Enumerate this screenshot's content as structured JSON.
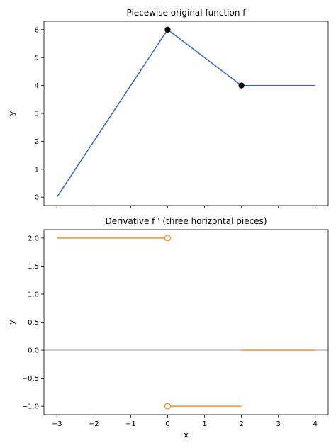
{
  "chart_data": [
    {
      "type": "line",
      "title": "Piecewise original function  f",
      "xlabel": "",
      "ylabel": "y",
      "xlim": [
        -3.35,
        4.35
      ],
      "ylim": [
        -0.3,
        6.3
      ],
      "xticks": [
        -3,
        -2,
        -1,
        0,
        1,
        2,
        3,
        4
      ],
      "xtick_labels_shown": false,
      "yticks": [
        0,
        1,
        2,
        3,
        4,
        5,
        6
      ],
      "ytick_labels": [
        "0",
        "1",
        "2",
        "3",
        "4",
        "5",
        "6"
      ],
      "grid": false,
      "series": [
        {
          "x": [
            -3,
            0,
            2,
            4
          ],
          "y": [
            0,
            6,
            4,
            4
          ],
          "color": "#3366cc"
        }
      ],
      "markers": [
        {
          "x": 0,
          "y": 6,
          "style": "filled",
          "color": "#000000"
        },
        {
          "x": 2,
          "y": 4,
          "style": "filled",
          "color": "#000000"
        }
      ]
    },
    {
      "type": "line",
      "title": "Derivative  f '  (three horizontal pieces)",
      "xlabel": "x",
      "ylabel": "y",
      "xlim": [
        -3.35,
        4.35
      ],
      "ylim": [
        -1.15,
        2.15
      ],
      "xticks": [
        -3,
        -2,
        -1,
        0,
        1,
        2,
        3,
        4
      ],
      "xtick_labels": [
        "−3",
        "−2",
        "−1",
        "0",
        "1",
        "2",
        "3",
        "4"
      ],
      "yticks": [
        -1.0,
        -0.5,
        0.0,
        0.5,
        1.0,
        1.5,
        2.0
      ],
      "ytick_labels": [
        "−1.0",
        "−0.5",
        "0.0",
        "0.5",
        "1.0",
        "1.5",
        "2.0"
      ],
      "grid": false,
      "reference_line": {
        "y": 0,
        "color": "#999999"
      },
      "series": [
        {
          "x": [
            -3,
            0
          ],
          "y": [
            2,
            2
          ],
          "color": "#ff8c1a"
        },
        {
          "x": [
            0,
            2
          ],
          "y": [
            -1,
            -1
          ],
          "color": "#ff8c1a"
        },
        {
          "x": [
            2,
            4
          ],
          "y": [
            0,
            0
          ],
          "color": "#ff8c1a"
        }
      ],
      "markers": [
        {
          "x": 0,
          "y": 2,
          "style": "open",
          "color": "#ff8c1a"
        },
        {
          "x": 0,
          "y": -1,
          "style": "open",
          "color": "#ff8c1a"
        }
      ]
    }
  ]
}
